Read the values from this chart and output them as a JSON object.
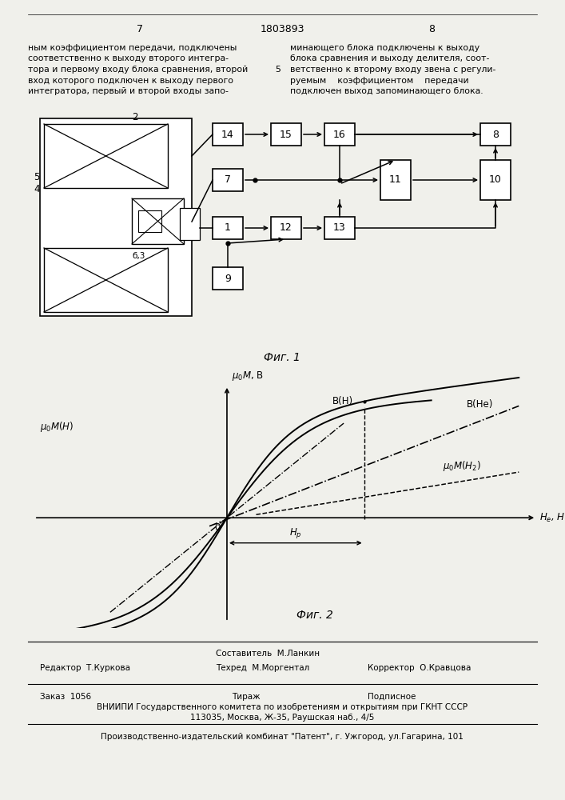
{
  "bg_color": "#f0f0eb",
  "page_num_left": "7",
  "page_num_center": "1803893",
  "page_num_right": "8",
  "text_left_lines": [
    "ным коэффициентом передачи, подключены",
    "соответственно к выходу второго интегра-",
    "тора и первому входу блока сравнения, второй",
    "вход которого подключен к выходу первого",
    "интегратора, первый и второй входы запо-"
  ],
  "text_right_lines": [
    "минающего блока подключены к выходу",
    "блока сравнения и выходу делителя, соот-",
    "ветственно к второму входу звена с регули-",
    "руемым    коэффициентом    передачи",
    "подключен выход запоминающего блока."
  ],
  "line_number_5": "5",
  "fig1_caption": "Фиг. 1",
  "fig2_caption": "Фиг. 2",
  "footer_author": "Составитель  М.Ланкин",
  "footer_tech": "Техред  М.Моргентал",
  "footer_editor": "Редактор  Т.Куркова",
  "footer_corrector": "Корректор  О.Кравцова",
  "footer_order": "Заказ  1056",
  "footer_tirazh": "Тираж",
  "footer_podpisnoe": "Подписное",
  "footer_vnipi": "ВНИИПИ Государственного комитета по изобретениям и открытиям при ГКНТ СССР",
  "footer_address": "113035, Москва, Ж-35, Раушская наб., 4/5",
  "footer_factory": "Производственно-издательский комбинат \"Патент\", г. Ужгород, ул.Гагарина, 101"
}
